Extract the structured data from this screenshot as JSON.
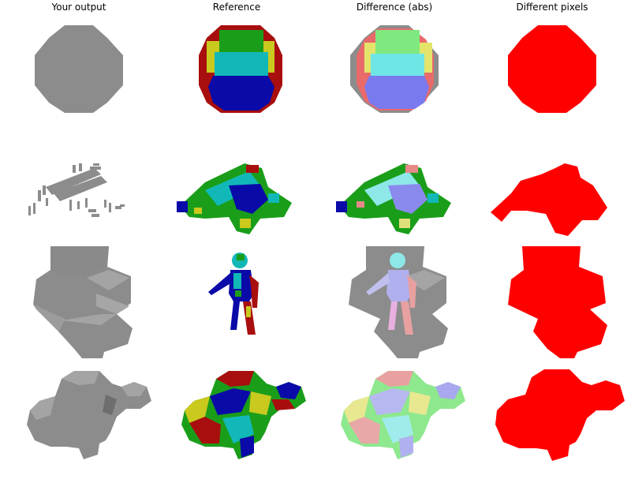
{
  "columns": [
    {
      "title": "Your output"
    },
    {
      "title": "Reference"
    },
    {
      "title": "Difference (abs)"
    },
    {
      "title": "Different pixels"
    }
  ],
  "rows": [
    {
      "subject": "sphere"
    },
    {
      "subject": "spaceship"
    },
    {
      "subject": "human figure"
    },
    {
      "subject": "bunny"
    }
  ],
  "colors": {
    "output_gray": "#8c8c8c",
    "diff_red": "#ff0000",
    "voxel_green": "#1a9e1a",
    "voxel_blue": "#0a0aa8",
    "voxel_cyan": "#12b8b8",
    "voxel_yellow": "#c9c91e",
    "voxel_darkred": "#a80e0e"
  }
}
